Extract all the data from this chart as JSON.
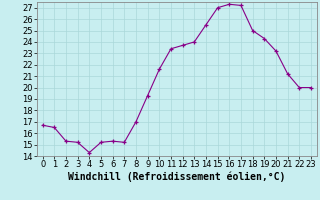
{
  "x": [
    0,
    1,
    2,
    3,
    4,
    5,
    6,
    7,
    8,
    9,
    10,
    11,
    12,
    13,
    14,
    15,
    16,
    17,
    18,
    19,
    20,
    21,
    22,
    23
  ],
  "y": [
    16.7,
    16.5,
    15.3,
    15.2,
    14.3,
    15.2,
    15.3,
    15.2,
    17.0,
    19.3,
    21.6,
    23.4,
    23.7,
    24.0,
    25.5,
    27.0,
    27.3,
    27.2,
    25.0,
    24.3,
    23.2,
    21.2,
    20.0,
    20.0
  ],
  "line_color": "#880088",
  "marker_color": "#880088",
  "background_color": "#c8eef0",
  "grid_color": "#aad8da",
  "xlabel": "Windchill (Refroidissement éolien,°C)",
  "xlabel_fontsize": 7.0,
  "tick_fontsize": 6.0,
  "ylim_min": 14,
  "ylim_max": 27.5,
  "yticks": [
    14,
    15,
    16,
    17,
    18,
    19,
    20,
    21,
    22,
    23,
    24,
    25,
    26,
    27
  ],
  "xtick_labels": [
    "0",
    "1",
    "2",
    "3",
    "4",
    "5",
    "6",
    "7",
    "8",
    "9",
    "10",
    "11",
    "12",
    "13",
    "14",
    "15",
    "16",
    "17",
    "18",
    "19",
    "20",
    "21",
    "22",
    "23"
  ],
  "spine_color": "#888888"
}
